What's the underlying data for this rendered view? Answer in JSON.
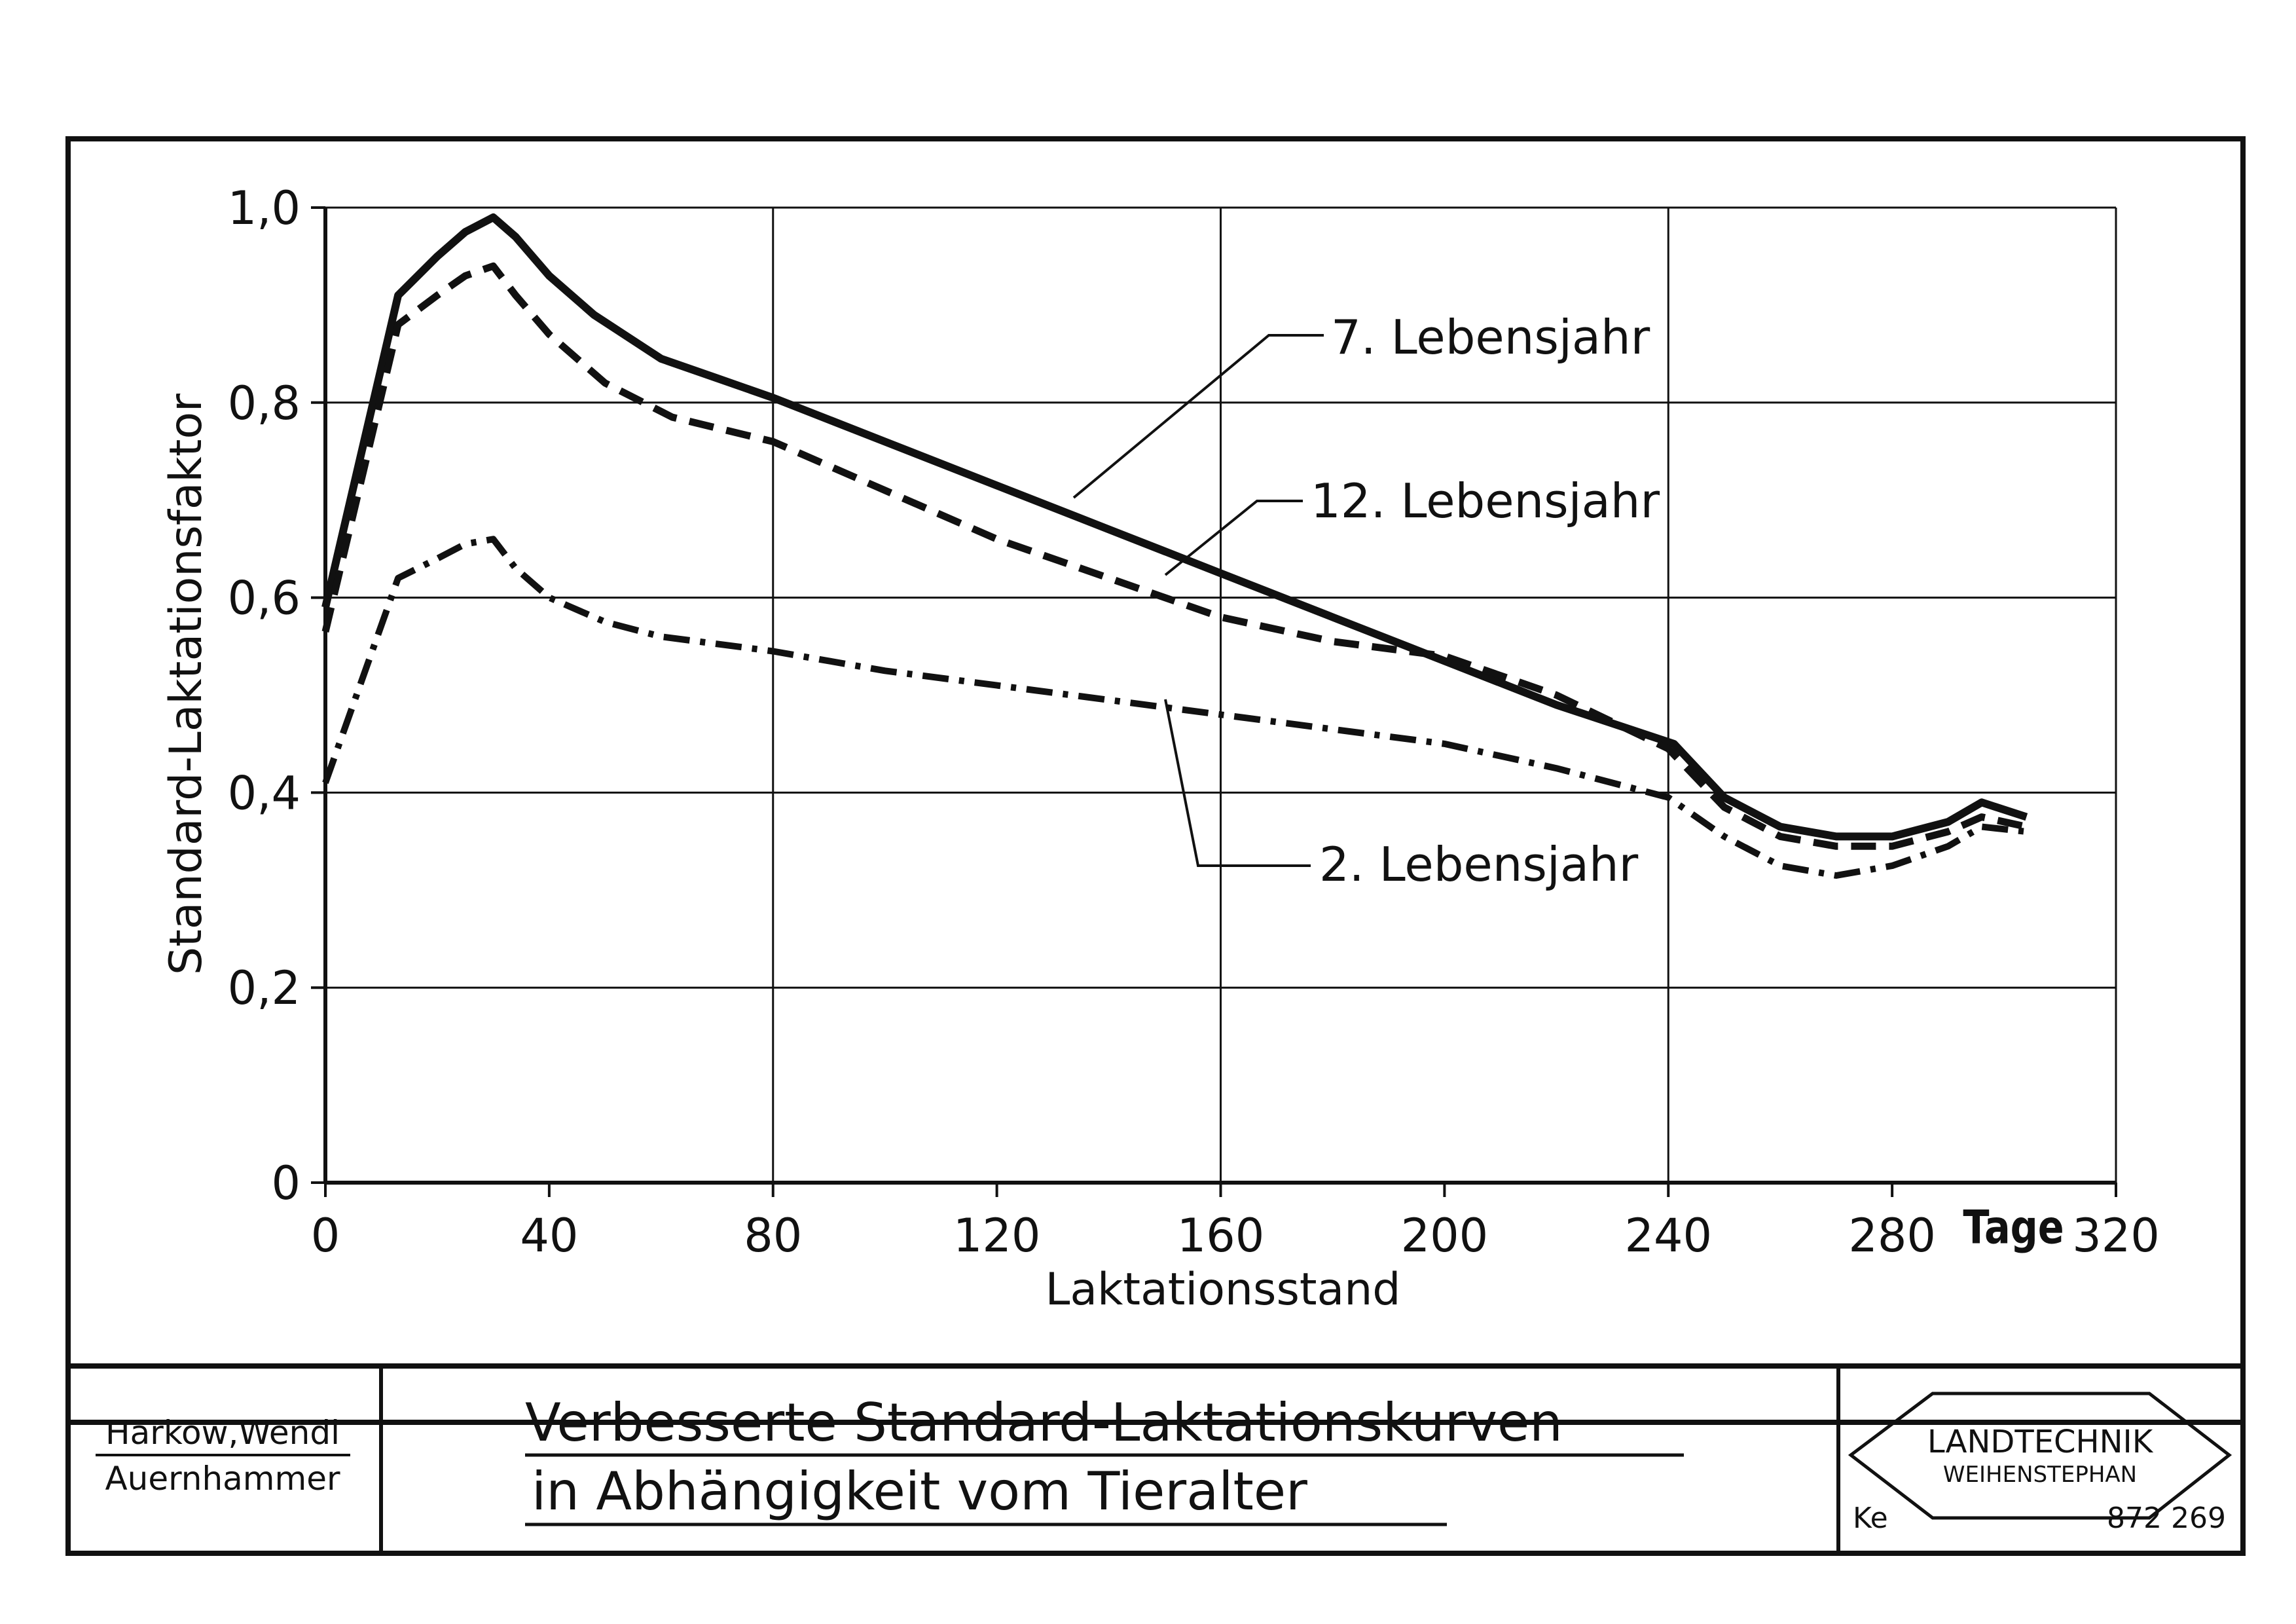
{
  "chart_data": {
    "type": "line",
    "xlabel": "Laktationsstand",
    "ylabel": "Standard-Laktationsfaktor",
    "x_unit": "Tage",
    "xlim": [
      0,
      320
    ],
    "ylim": [
      0,
      1.0
    ],
    "xticks": [
      0,
      40,
      80,
      120,
      160,
      200,
      240,
      280,
      320
    ],
    "xtick_labels": [
      "0",
      "40",
      "80",
      "120",
      "160",
      "200",
      "240",
      "280",
      "320"
    ],
    "yticks": [
      0,
      0.2,
      0.4,
      0.6,
      0.8,
      1.0
    ],
    "ytick_labels": [
      "0",
      "0,2",
      "0,4",
      "0,6",
      "0,8",
      "1,0"
    ],
    "grid": true,
    "series": [
      {
        "name": "7. Lebensjahr",
        "style": "solid",
        "x": [
          0,
          13,
          20,
          25,
          30,
          34,
          40,
          48,
          60,
          70,
          80,
          100,
          120,
          140,
          160,
          180,
          200,
          220,
          241,
          250,
          260,
          270,
          280,
          290,
          296,
          304
        ],
        "y": [
          0.59,
          0.91,
          0.95,
          0.975,
          0.99,
          0.97,
          0.93,
          0.89,
          0.845,
          0.825,
          0.805,
          0.76,
          0.715,
          0.67,
          0.625,
          0.58,
          0.535,
          0.49,
          0.45,
          0.395,
          0.365,
          0.355,
          0.355,
          0.37,
          0.39,
          0.375
        ]
      },
      {
        "name": "12. Lebensjahr",
        "style": "dashed",
        "x": [
          0,
          13,
          20,
          25,
          30,
          34,
          40,
          50,
          62,
          80,
          100,
          120,
          140,
          160,
          180,
          200,
          220,
          240,
          250,
          260,
          270,
          280,
          290,
          296,
          304
        ],
        "y": [
          0.565,
          0.88,
          0.91,
          0.93,
          0.94,
          0.91,
          0.87,
          0.82,
          0.785,
          0.76,
          0.71,
          0.66,
          0.62,
          0.58,
          0.555,
          0.54,
          0.5,
          0.445,
          0.385,
          0.355,
          0.345,
          0.345,
          0.36,
          0.375,
          0.365
        ]
      },
      {
        "name": "2. Lebensjahr",
        "style": "dash-dot",
        "x": [
          0,
          13,
          20,
          25,
          30,
          34,
          40,
          50,
          60,
          80,
          100,
          120,
          140,
          160,
          180,
          200,
          220,
          240,
          250,
          260,
          270,
          280,
          290,
          296,
          304
        ],
        "y": [
          0.41,
          0.62,
          0.64,
          0.655,
          0.66,
          0.63,
          0.6,
          0.575,
          0.56,
          0.545,
          0.525,
          0.51,
          0.495,
          0.48,
          0.465,
          0.45,
          0.425,
          0.395,
          0.355,
          0.325,
          0.315,
          0.325,
          0.345,
          0.365,
          0.36
        ]
      }
    ]
  },
  "title_block": {
    "authors_line1": "Harkow,Wendl",
    "authors_line2": "Auernhammer",
    "title_line1": "Verbesserte Standard-Laktationskurven",
    "title_line2": "in Abhängigkeit vom Tieralter",
    "logo_line1": "LANDTECHNIK",
    "logo_line2": "WEIHENSTEPHAN",
    "code_left": "Ke",
    "code_right": "872 269"
  },
  "colors": {
    "ink": "#111111",
    "paper": "#ffffff"
  }
}
